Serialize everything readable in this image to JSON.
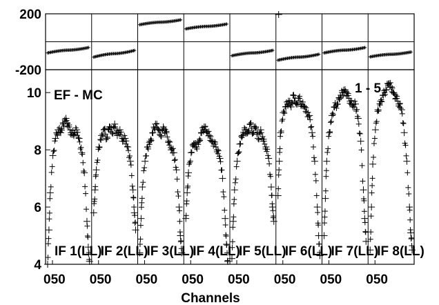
{
  "chart_data": {
    "type": "scatter",
    "marker": "plus",
    "color": "#000000",
    "xlabel": "Channels",
    "x_tick_labels": [
      "050",
      "050",
      "050",
      "050",
      "050",
      "050",
      "050",
      "050"
    ],
    "top_panel": {
      "ylim": [
        -200,
        200
      ],
      "yticks": [
        "200",
        "-200"
      ],
      "grid": "horizontal line at 0",
      "series": [
        {
          "panel": 1,
          "center": -60,
          "amp": 20
        },
        {
          "panel": 2,
          "center": -85,
          "amp": 25
        },
        {
          "panel": 3,
          "center": 140,
          "amp": 18
        },
        {
          "panel": 4,
          "center": 110,
          "amp": 18
        },
        {
          "panel": 5,
          "center": -80,
          "amp": 20
        },
        {
          "panel": 6,
          "center": -110,
          "amp": 22
        },
        {
          "panel": 7,
          "center": -60,
          "amp": 20
        },
        {
          "panel": 8,
          "center": -90,
          "amp": 18
        }
      ],
      "outlier": {
        "panel": 6,
        "x": 1,
        "y": 195
      }
    },
    "bottom_panel": {
      "ylim": [
        4,
        10.8
      ],
      "yticks": [
        "4",
        "6",
        "8",
        "10"
      ],
      "series": [
        {
          "panel": 1,
          "label": "IF 1(LL)",
          "x": [
            0,
            2,
            4,
            8,
            12,
            16,
            20,
            24,
            28,
            32,
            36,
            40,
            44,
            48,
            52,
            56,
            60,
            62,
            64
          ],
          "y": [
            4.0,
            5.2,
            6.5,
            7.8,
            8.4,
            8.7,
            8.6,
            8.9,
            9.1,
            8.8,
            8.6,
            8.5,
            8.7,
            8.4,
            7.9,
            7.2,
            5.5,
            4.6,
            4.1
          ]
        },
        {
          "panel": 2,
          "label": "IF 2(LL)",
          "x": [
            0,
            2,
            4,
            8,
            12,
            16,
            20,
            24,
            28,
            32,
            36,
            40,
            44,
            48,
            52,
            56,
            60,
            62,
            64
          ],
          "y": [
            5.8,
            6.6,
            7.3,
            8.1,
            8.5,
            8.7,
            8.4,
            8.8,
            8.6,
            8.9,
            8.5,
            8.7,
            8.3,
            8.4,
            8.1,
            7.6,
            6.6,
            5.8,
            5.2
          ]
        },
        {
          "panel": 3,
          "label": "IF 3(LL)",
          "x": [
            0,
            2,
            4,
            8,
            12,
            16,
            20,
            24,
            28,
            32,
            36,
            40,
            44,
            48,
            52,
            56,
            60,
            62,
            64
          ],
          "y": [
            4.4,
            5.6,
            6.7,
            7.6,
            8.1,
            8.3,
            8.6,
            8.9,
            8.7,
            8.5,
            8.8,
            8.6,
            8.3,
            8.0,
            7.9,
            7.3,
            6.0,
            5.0,
            4.4
          ]
        },
        {
          "panel": 4,
          "label": "IF 4(LL)",
          "x": [
            0,
            2,
            4,
            8,
            12,
            16,
            20,
            24,
            28,
            32,
            36,
            40,
            44,
            48,
            52,
            56,
            60,
            62,
            64
          ],
          "y": [
            5.6,
            6.5,
            7.2,
            7.9,
            8.2,
            8.1,
            8.3,
            8.6,
            8.8,
            8.6,
            8.5,
            8.3,
            8.2,
            8.0,
            7.7,
            7.0,
            5.6,
            4.7,
            4.1
          ]
        },
        {
          "panel": 5,
          "label": "IF 5(LL)",
          "x": [
            0,
            2,
            4,
            8,
            12,
            16,
            20,
            24,
            28,
            32,
            36,
            40,
            44,
            48,
            52,
            56,
            60,
            62,
            64
          ],
          "y": [
            4.2,
            5.5,
            6.6,
            7.6,
            8.2,
            8.5,
            8.7,
            8.6,
            8.9,
            8.6,
            8.8,
            8.4,
            8.7,
            8.3,
            8.1,
            7.7,
            6.7,
            6.0,
            5.5
          ]
        },
        {
          "panel": 6,
          "label": "IF 6(LL)",
          "x": [
            0,
            2,
            4,
            8,
            12,
            16,
            20,
            24,
            28,
            32,
            36,
            40,
            44,
            48,
            52,
            56,
            60,
            62,
            64
          ],
          "y": [
            6.4,
            7.6,
            8.6,
            9.3,
            9.5,
            9.7,
            9.5,
            9.9,
            9.6,
            9.8,
            9.6,
            9.5,
            9.3,
            9.2,
            8.6,
            7.6,
            6.0,
            5.0,
            4.3
          ]
        },
        {
          "panel": 7,
          "label": "IF 7(LL)",
          "x": [
            0,
            2,
            4,
            8,
            12,
            16,
            20,
            24,
            28,
            32,
            36,
            40,
            44,
            48,
            52,
            56,
            60,
            62,
            64
          ],
          "y": [
            5.0,
            6.3,
            7.6,
            8.6,
            9.2,
            9.5,
            9.6,
            9.8,
            10.0,
            10.1,
            9.9,
            9.7,
            9.5,
            9.6,
            9.1,
            8.3,
            6.6,
            5.6,
            4.8
          ]
        },
        {
          "panel": 8,
          "label": "IF 8(LL)",
          "x": [
            0,
            2,
            4,
            8,
            12,
            16,
            20,
            24,
            28,
            32,
            36,
            40,
            44,
            48,
            52,
            56,
            60,
            62,
            64
          ],
          "y": [
            4.5,
            6.0,
            7.5,
            8.7,
            9.4,
            9.7,
            9.9,
            10.1,
            10.3,
            10.2,
            10.0,
            9.8,
            9.6,
            9.4,
            8.6,
            7.6,
            6.0,
            5.1,
            4.5
          ]
        }
      ]
    },
    "annotations": {
      "left": "EF - MC",
      "right": "1 - 5"
    }
  }
}
